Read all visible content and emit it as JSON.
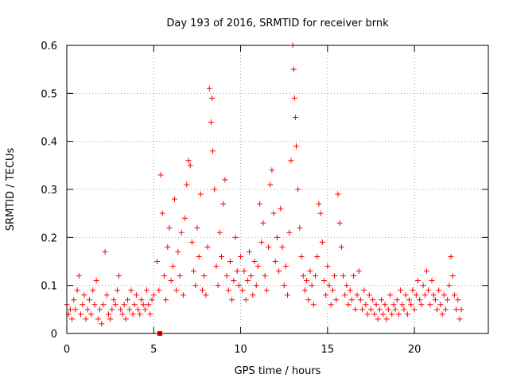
{
  "chart_data": {
    "type": "scatter",
    "title": "Day 193 of 2016, SRMTID for receiver brnk",
    "xlabel": "GPS time / hours",
    "ylabel": "SRMTID / TECUs",
    "xlim": [
      0,
      24.25
    ],
    "ylim": [
      0,
      0.6
    ],
    "x_ticks": [
      0,
      5,
      10,
      15,
      20
    ],
    "x_tick_labels": [
      "0",
      "5",
      "10",
      "15",
      "20"
    ],
    "y_ticks": [
      0,
      0.1,
      0.2,
      0.3,
      0.4,
      0.5,
      0.6
    ],
    "y_tick_labels": [
      "0",
      "0.1",
      "0.2",
      "0.3",
      "0.4",
      "0.5",
      "0.6"
    ],
    "grid": true,
    "marker": "plus",
    "color": "#ff0000",
    "series": [
      {
        "name": "SRMTID",
        "points": [
          [
            0.0,
            0.06
          ],
          [
            0.1,
            0.04
          ],
          [
            0.2,
            0.05
          ],
          [
            0.3,
            0.03
          ],
          [
            0.4,
            0.07
          ],
          [
            0.5,
            0.05
          ],
          [
            0.6,
            0.09
          ],
          [
            0.7,
            0.12
          ],
          [
            0.8,
            0.04
          ],
          [
            0.9,
            0.06
          ],
          [
            1.0,
            0.08
          ],
          [
            1.1,
            0.03
          ],
          [
            1.2,
            0.05
          ],
          [
            1.3,
            0.07
          ],
          [
            1.4,
            0.04
          ],
          [
            1.5,
            0.09
          ],
          [
            1.6,
            0.06
          ],
          [
            1.7,
            0.11
          ],
          [
            1.8,
            0.03
          ],
          [
            1.9,
            0.05
          ],
          [
            2.0,
            0.02
          ],
          [
            2.1,
            0.06
          ],
          [
            2.2,
            0.17
          ],
          [
            2.3,
            0.08
          ],
          [
            2.4,
            0.04
          ],
          [
            2.5,
            0.03
          ],
          [
            2.6,
            0.05
          ],
          [
            2.7,
            0.07
          ],
          [
            2.8,
            0.06
          ],
          [
            2.9,
            0.09
          ],
          [
            3.0,
            0.12
          ],
          [
            3.1,
            0.05
          ],
          [
            3.2,
            0.04
          ],
          [
            3.3,
            0.06
          ],
          [
            3.4,
            0.03
          ],
          [
            3.5,
            0.07
          ],
          [
            3.6,
            0.05
          ],
          [
            3.7,
            0.09
          ],
          [
            3.8,
            0.04
          ],
          [
            3.9,
            0.06
          ],
          [
            4.0,
            0.08
          ],
          [
            4.1,
            0.05
          ],
          [
            4.2,
            0.04
          ],
          [
            4.3,
            0.07
          ],
          [
            4.4,
            0.06
          ],
          [
            4.5,
            0.05
          ],
          [
            4.6,
            0.09
          ],
          [
            4.7,
            0.06
          ],
          [
            4.8,
            0.04
          ],
          [
            4.9,
            0.07
          ],
          [
            5.0,
            0.08
          ],
          [
            5.2,
            0.15
          ],
          [
            5.3,
            0.09
          ],
          [
            5.4,
            0.33
          ],
          [
            5.5,
            0.25
          ],
          [
            5.6,
            0.12
          ],
          [
            5.7,
            0.07
          ],
          [
            5.8,
            0.18
          ],
          [
            5.9,
            0.22
          ],
          [
            6.0,
            0.11
          ],
          [
            6.1,
            0.14
          ],
          [
            6.2,
            0.28
          ],
          [
            6.3,
            0.09
          ],
          [
            6.4,
            0.17
          ],
          [
            6.5,
            0.12
          ],
          [
            6.6,
            0.21
          ],
          [
            6.7,
            0.08
          ],
          [
            6.8,
            0.24
          ],
          [
            6.9,
            0.31
          ],
          [
            7.0,
            0.36
          ],
          [
            7.1,
            0.35
          ],
          [
            7.2,
            0.19
          ],
          [
            7.3,
            0.13
          ],
          [
            7.4,
            0.1
          ],
          [
            7.5,
            0.22
          ],
          [
            7.6,
            0.16
          ],
          [
            7.7,
            0.29
          ],
          [
            7.8,
            0.09
          ],
          [
            7.9,
            0.12
          ],
          [
            8.0,
            0.08
          ],
          [
            8.1,
            0.18
          ],
          [
            8.2,
            0.51
          ],
          [
            8.3,
            0.44
          ],
          [
            8.35,
            0.49
          ],
          [
            8.4,
            0.38
          ],
          [
            8.5,
            0.3
          ],
          [
            8.6,
            0.14
          ],
          [
            8.7,
            0.1
          ],
          [
            8.8,
            0.21
          ],
          [
            8.9,
            0.16
          ],
          [
            9.0,
            0.27
          ],
          [
            9.1,
            0.32
          ],
          [
            9.2,
            0.12
          ],
          [
            9.3,
            0.09
          ],
          [
            9.4,
            0.15
          ],
          [
            9.5,
            0.07
          ],
          [
            9.6,
            0.11
          ],
          [
            9.7,
            0.2
          ],
          [
            9.8,
            0.13
          ],
          [
            9.9,
            0.1
          ],
          [
            10.0,
            0.16
          ],
          [
            10.1,
            0.09
          ],
          [
            10.2,
            0.13
          ],
          [
            10.3,
            0.07
          ],
          [
            10.4,
            0.11
          ],
          [
            10.5,
            0.17
          ],
          [
            10.6,
            0.12
          ],
          [
            10.7,
            0.08
          ],
          [
            10.8,
            0.15
          ],
          [
            10.9,
            0.1
          ],
          [
            11.0,
            0.14
          ],
          [
            11.1,
            0.27
          ],
          [
            11.2,
            0.19
          ],
          [
            11.3,
            0.23
          ],
          [
            11.4,
            0.12
          ],
          [
            11.5,
            0.09
          ],
          [
            11.6,
            0.18
          ],
          [
            11.7,
            0.31
          ],
          [
            11.8,
            0.34
          ],
          [
            11.9,
            0.25
          ],
          [
            12.0,
            0.15
          ],
          [
            12.1,
            0.2
          ],
          [
            12.2,
            0.13
          ],
          [
            12.3,
            0.26
          ],
          [
            12.4,
            0.18
          ],
          [
            12.5,
            0.1
          ],
          [
            12.6,
            0.14
          ],
          [
            12.7,
            0.08
          ],
          [
            12.8,
            0.21
          ],
          [
            12.9,
            0.36
          ],
          [
            13.0,
            0.6
          ],
          [
            13.05,
            0.55
          ],
          [
            13.1,
            0.49
          ],
          [
            13.15,
            0.45
          ],
          [
            13.2,
            0.39
          ],
          [
            13.3,
            0.3
          ],
          [
            13.4,
            0.22
          ],
          [
            13.5,
            0.16
          ],
          [
            13.6,
            0.12
          ],
          [
            13.7,
            0.09
          ],
          [
            13.8,
            0.11
          ],
          [
            13.9,
            0.07
          ],
          [
            14.0,
            0.13
          ],
          [
            14.1,
            0.1
          ],
          [
            14.2,
            0.06
          ],
          [
            14.3,
            0.12
          ],
          [
            14.4,
            0.16
          ],
          [
            14.5,
            0.27
          ],
          [
            14.6,
            0.25
          ],
          [
            14.7,
            0.19
          ],
          [
            14.8,
            0.11
          ],
          [
            14.9,
            0.08
          ],
          [
            15.0,
            0.14
          ],
          [
            15.1,
            0.1
          ],
          [
            15.2,
            0.06
          ],
          [
            15.3,
            0.09
          ],
          [
            15.4,
            0.12
          ],
          [
            15.5,
            0.07
          ],
          [
            15.6,
            0.29
          ],
          [
            15.7,
            0.23
          ],
          [
            15.8,
            0.18
          ],
          [
            15.9,
            0.12
          ],
          [
            16.0,
            0.08
          ],
          [
            16.1,
            0.1
          ],
          [
            16.2,
            0.06
          ],
          [
            16.3,
            0.09
          ],
          [
            16.4,
            0.07
          ],
          [
            16.5,
            0.12
          ],
          [
            16.6,
            0.05
          ],
          [
            16.7,
            0.08
          ],
          [
            16.8,
            0.13
          ],
          [
            16.9,
            0.07
          ],
          [
            17.0,
            0.05
          ],
          [
            17.1,
            0.09
          ],
          [
            17.2,
            0.06
          ],
          [
            17.3,
            0.04
          ],
          [
            17.4,
            0.08
          ],
          [
            17.5,
            0.05
          ],
          [
            17.6,
            0.07
          ],
          [
            17.7,
            0.04
          ],
          [
            17.8,
            0.06
          ],
          [
            17.9,
            0.03
          ],
          [
            18.0,
            0.05
          ],
          [
            18.1,
            0.07
          ],
          [
            18.2,
            0.04
          ],
          [
            18.3,
            0.06
          ],
          [
            18.4,
            0.03
          ],
          [
            18.5,
            0.05
          ],
          [
            18.6,
            0.08
          ],
          [
            18.7,
            0.04
          ],
          [
            18.8,
            0.06
          ],
          [
            18.9,
            0.05
          ],
          [
            19.0,
            0.07
          ],
          [
            19.1,
            0.04
          ],
          [
            19.2,
            0.09
          ],
          [
            19.3,
            0.06
          ],
          [
            19.4,
            0.05
          ],
          [
            19.5,
            0.08
          ],
          [
            19.6,
            0.04
          ],
          [
            19.7,
            0.07
          ],
          [
            19.8,
            0.06
          ],
          [
            19.9,
            0.09
          ],
          [
            20.0,
            0.05
          ],
          [
            20.1,
            0.08
          ],
          [
            20.2,
            0.11
          ],
          [
            20.3,
            0.07
          ],
          [
            20.4,
            0.06
          ],
          [
            20.5,
            0.1
          ],
          [
            20.6,
            0.08
          ],
          [
            20.7,
            0.13
          ],
          [
            20.8,
            0.09
          ],
          [
            20.9,
            0.06
          ],
          [
            21.0,
            0.11
          ],
          [
            21.1,
            0.08
          ],
          [
            21.2,
            0.07
          ],
          [
            21.3,
            0.05
          ],
          [
            21.4,
            0.09
          ],
          [
            21.5,
            0.06
          ],
          [
            21.6,
            0.04
          ],
          [
            21.7,
            0.08
          ],
          [
            21.8,
            0.05
          ],
          [
            21.9,
            0.07
          ],
          [
            22.0,
            0.1
          ],
          [
            22.1,
            0.16
          ],
          [
            22.2,
            0.12
          ],
          [
            22.3,
            0.08
          ],
          [
            22.4,
            0.05
          ],
          [
            22.5,
            0.07
          ],
          [
            22.6,
            0.03
          ],
          [
            22.7,
            0.05
          ]
        ]
      }
    ],
    "annotations": [
      {
        "type": "square",
        "x": 5.35,
        "y": 0.0
      }
    ]
  }
}
